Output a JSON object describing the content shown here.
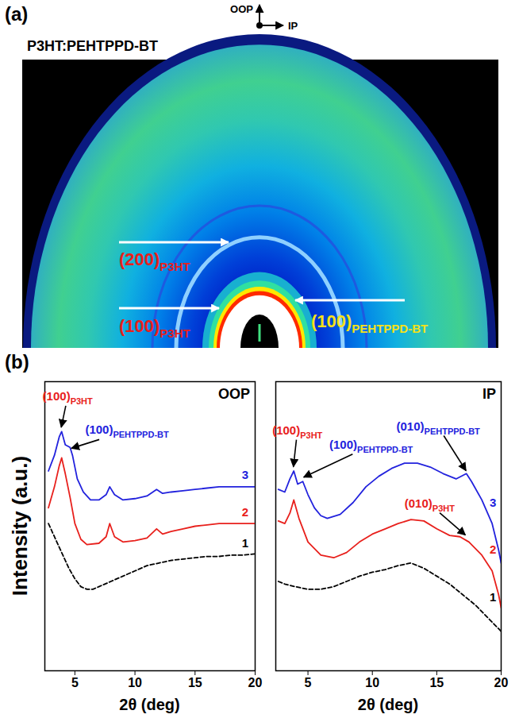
{
  "figure_a": {
    "panel_label": "(a)",
    "sample": "P3HT:PEHTPPD-BT",
    "axes": {
      "up": "OOP",
      "right": "IP"
    },
    "peaks": [
      {
        "text": "(200)",
        "sub": "P3HT",
        "color": "#e8201c"
      },
      {
        "text": "(100)",
        "sub": "P3HT",
        "color": "#e8201c"
      },
      {
        "text": "(100)",
        "sub": "PEHTPPD-BT",
        "color": "#f5e11a"
      }
    ]
  },
  "figure_b": {
    "panel_label": "(b)"
  },
  "chart_data": [
    {
      "type": "line",
      "title": "OOP",
      "x_label": "2θ (deg)",
      "y_label": "Intensity (a.u.)",
      "xlim": [
        2.5,
        20
      ],
      "xticks": [
        5,
        10,
        15,
        20
      ],
      "ylim": [
        0,
        11
      ],
      "tick_labels": "x",
      "series": [
        {
          "name": "3",
          "color": "#2222dd",
          "x": [
            2.8,
            3.3,
            3.7,
            3.9,
            4.2,
            4.6,
            4.8,
            5.2,
            5.7,
            6.3,
            7.0,
            7.6,
            7.9,
            8.3,
            9.0,
            10,
            11,
            11.8,
            12.3,
            13,
            14,
            15,
            16,
            17,
            18,
            19,
            20
          ],
          "values": [
            7.6,
            8.2,
            8.9,
            9.1,
            8.6,
            8.5,
            8.2,
            7.3,
            6.8,
            6.5,
            6.5,
            6.7,
            7.0,
            6.7,
            6.5,
            6.55,
            6.65,
            6.9,
            6.75,
            6.8,
            6.85,
            6.9,
            6.95,
            7.0,
            7.0,
            7.0,
            7.0
          ]
        },
        {
          "name": "2",
          "color": "#e8201c",
          "x": [
            2.8,
            3.3,
            3.7,
            3.9,
            4.2,
            4.6,
            5.0,
            5.5,
            6.0,
            7.0,
            7.6,
            7.9,
            8.3,
            9.0,
            10,
            11,
            11.8,
            12.3,
            13,
            14,
            15,
            16,
            17,
            18,
            19,
            20
          ],
          "values": [
            6.2,
            7.0,
            7.8,
            8.1,
            7.5,
            6.6,
            5.6,
            5.0,
            4.8,
            4.85,
            5.1,
            5.6,
            5.1,
            4.9,
            4.95,
            5.05,
            5.4,
            5.2,
            5.3,
            5.4,
            5.5,
            5.55,
            5.6,
            5.6,
            5.6,
            5.6
          ]
        },
        {
          "name": "1",
          "color": "#000000",
          "line_style": "dashed",
          "x": [
            2.8,
            3.3,
            4.0,
            4.5,
            5.0,
            5.5,
            6.0,
            6.5,
            7,
            8,
            9,
            10,
            11,
            12,
            13,
            14,
            15,
            16,
            17,
            18,
            19,
            20
          ],
          "values": [
            5.6,
            5.1,
            4.4,
            3.9,
            3.5,
            3.2,
            3.1,
            3.1,
            3.2,
            3.4,
            3.6,
            3.8,
            4.0,
            4.1,
            4.2,
            4.25,
            4.3,
            4.35,
            4.35,
            4.4,
            4.4,
            4.45
          ]
        }
      ],
      "annotations": [
        {
          "text": "(100)",
          "sub": "P3HT",
          "color": "#e8201c",
          "x": 3.9,
          "y": 9.25
        },
        {
          "text": "(100)",
          "sub": "PEHTPPD-BT",
          "color": "#2222dd",
          "x": 4.75,
          "y": 8.45
        }
      ]
    },
    {
      "type": "line",
      "title": "IP",
      "x_label": "2θ (deg)",
      "xlim": [
        2.5,
        20
      ],
      "xticks": [
        5,
        10,
        15,
        20
      ],
      "ylim": [
        0,
        11
      ],
      "tick_labels": "x",
      "series": [
        {
          "name": "3",
          "color": "#2222dd",
          "x": [
            2.7,
            3.2,
            3.6,
            3.9,
            4.2,
            4.6,
            5.0,
            5.5,
            6.0,
            6.5,
            7.5,
            8.5,
            9.5,
            10.5,
            11.5,
            12.5,
            13.5,
            14.5,
            15.5,
            16.5,
            17.3,
            17.7,
            18.5,
            19.3,
            19.8,
            20
          ],
          "values": [
            6.9,
            6.8,
            7.3,
            7.6,
            7.1,
            7.2,
            6.7,
            6.2,
            5.9,
            5.8,
            5.95,
            6.4,
            7.0,
            7.4,
            7.7,
            7.9,
            7.9,
            7.75,
            7.5,
            7.3,
            7.5,
            7.2,
            6.5,
            5.6,
            4.6,
            4.1
          ]
        },
        {
          "name": "2",
          "color": "#e8201c",
          "x": [
            2.7,
            3.2,
            3.6,
            3.9,
            4.3,
            5.0,
            6.0,
            7.0,
            8.0,
            9.0,
            10,
            11,
            12,
            13,
            14,
            15,
            16,
            16.8,
            17.5,
            18.5,
            19.3,
            19.8,
            20
          ],
          "values": [
            5.7,
            5.6,
            6.0,
            6.5,
            5.8,
            4.9,
            4.4,
            4.3,
            4.5,
            4.9,
            5.2,
            5.4,
            5.6,
            5.75,
            5.7,
            5.4,
            5.15,
            5.1,
            4.9,
            4.4,
            3.8,
            2.9,
            2.4
          ]
        },
        {
          "name": "1",
          "color": "#000000",
          "line_style": "dashed",
          "x": [
            2.7,
            3.2,
            4,
            5,
            6,
            7,
            8,
            9,
            10,
            11,
            12,
            13,
            14,
            15,
            16,
            17,
            18,
            19,
            20
          ],
          "values": [
            3.4,
            3.3,
            3.2,
            3.1,
            3.1,
            3.2,
            3.4,
            3.6,
            3.75,
            3.85,
            4.0,
            4.1,
            3.9,
            3.6,
            3.3,
            2.9,
            2.5,
            2.0,
            1.5
          ]
        }
      ],
      "annotations": [
        {
          "text": "(100)",
          "sub": "P3HT",
          "color": "#e8201c",
          "x": 3.9,
          "y": 7.75
        },
        {
          "text": "(100)",
          "sub": "PEHTPPD-BT",
          "color": "#2222dd",
          "x": 4.7,
          "y": 7.35
        },
        {
          "text": "(010)",
          "sub": "PEHTPPD-BT",
          "color": "#2222dd",
          "x": 17.3,
          "y": 7.6
        },
        {
          "text": "(010)",
          "sub": "P3HT",
          "color": "#e8201c",
          "x": 17.25,
          "y": 5.15
        }
      ]
    }
  ]
}
